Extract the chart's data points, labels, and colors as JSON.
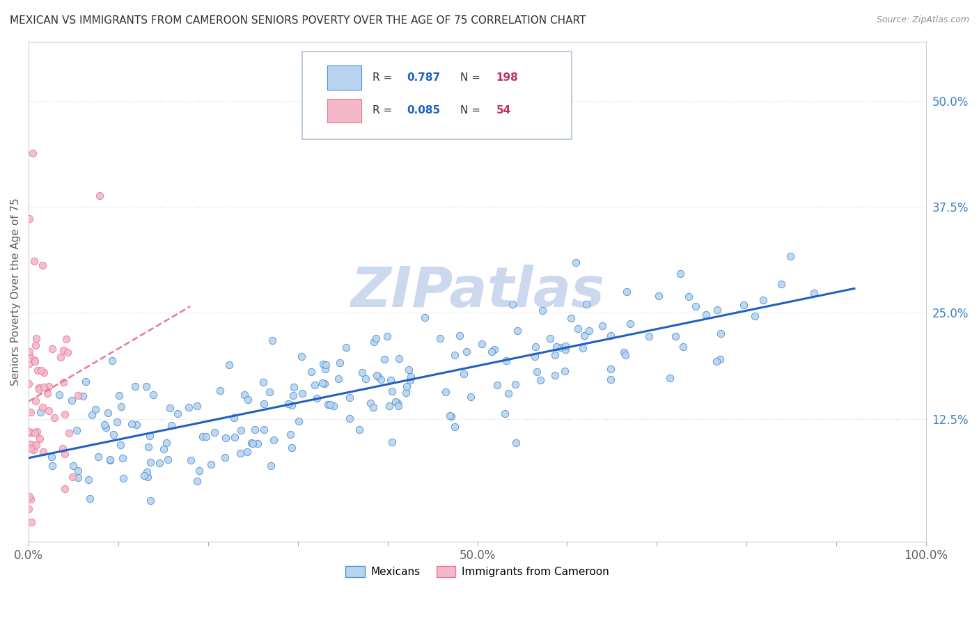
{
  "title": "MEXICAN VS IMMIGRANTS FROM CAMEROON SENIORS POVERTY OVER THE AGE OF 75 CORRELATION CHART",
  "source": "Source: ZipAtlas.com",
  "ylabel": "Seniors Poverty Over the Age of 75",
  "xlim": [
    0.0,
    1.0
  ],
  "ylim": [
    -0.02,
    0.57
  ],
  "yticks": [
    0.125,
    0.25,
    0.375,
    0.5
  ],
  "ytick_labels": [
    "12.5%",
    "25.0%",
    "37.5%",
    "50.0%"
  ],
  "xtick_positions": [
    0.0,
    0.1,
    0.2,
    0.3,
    0.4,
    0.5,
    0.6,
    0.7,
    0.8,
    0.9,
    1.0
  ],
  "xtick_labels_shown": {
    "0.0": "0.0%",
    "0.5": "50.0%",
    "1.0": "100.0%"
  },
  "mexican_color": "#b8d4f0",
  "cameroon_color": "#f4b8c8",
  "mexican_edge": "#5090d0",
  "cameroon_edge": "#e87898",
  "trend_mexican_color": "#2060c0",
  "trend_cameroon_color": "#e87898",
  "mexican_R": 0.787,
  "mexican_N": 198,
  "cameroon_R": 0.085,
  "cameroon_N": 54,
  "watermark": "ZIPatlas",
  "watermark_color": "#ccd8ee",
  "legend_R_color": "#2060c0",
  "legend_N_color": "#c03060",
  "mexican_label": "Mexicans",
  "cameroon_label": "Immigrants from Cameroon",
  "background_color": "#ffffff",
  "grid_color": "#d8d8d8",
  "title_color": "#303030",
  "axis_label_color": "#606060",
  "ytick_color": "#4080c0",
  "xtick_color": "#606060"
}
